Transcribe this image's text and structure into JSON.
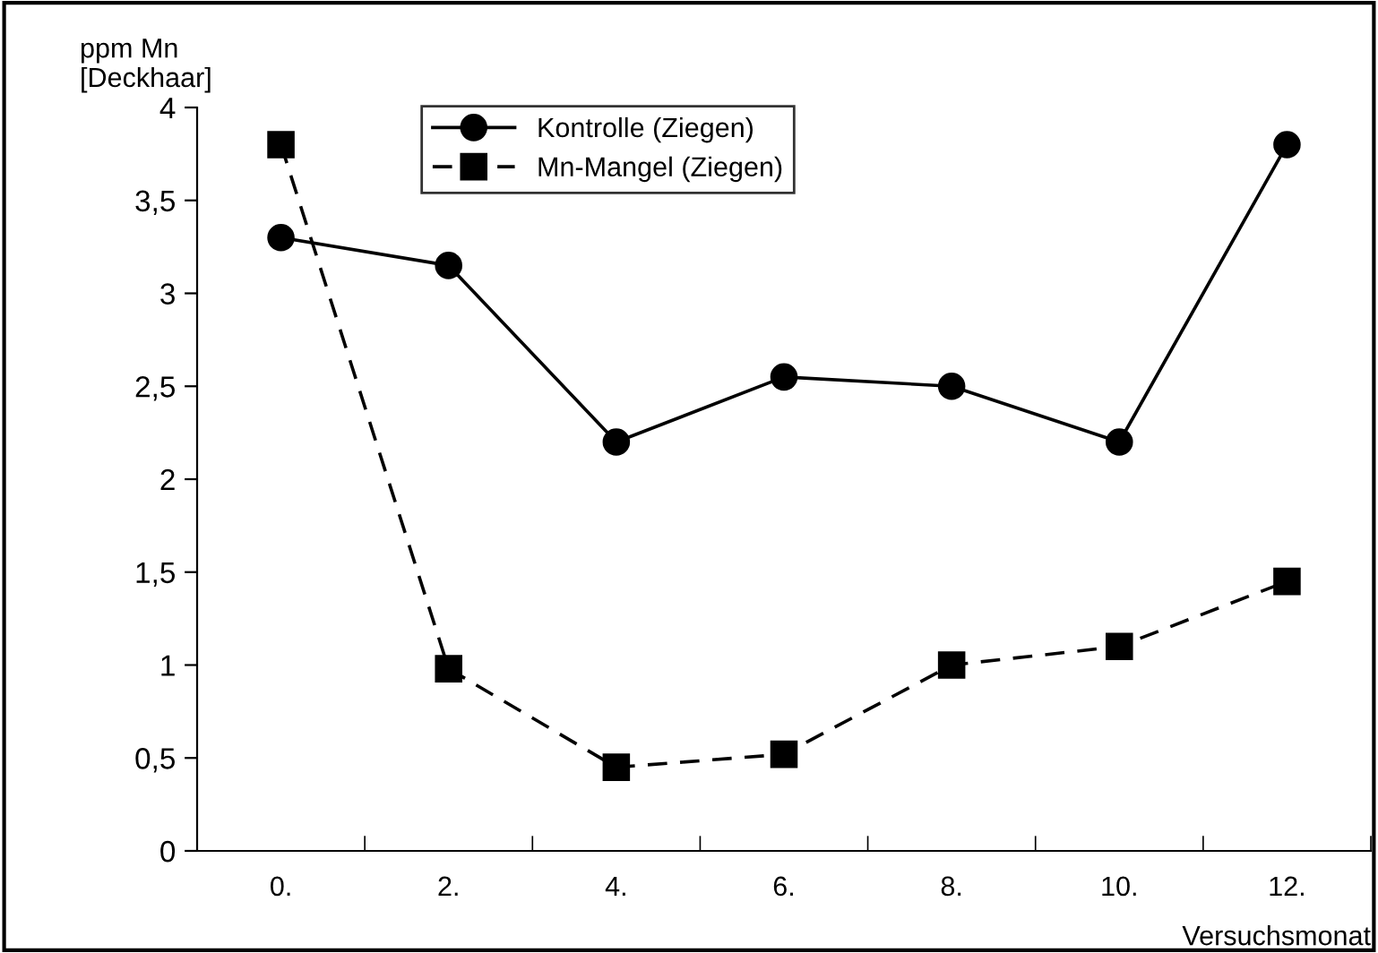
{
  "chart_data": {
    "type": "line",
    "ylabel": "ppm Mn\n[Deckhaar]",
    "xlabel": "Versuchsmonat",
    "categories": [
      "0.",
      "2.",
      "4.",
      "6.",
      "8.",
      "10.",
      "12."
    ],
    "series": [
      {
        "name": "Kontrolle (Ziegen)",
        "color": "#000000",
        "marker": "circle",
        "line_style": "solid",
        "values": [
          3.3,
          3.15,
          2.2,
          2.55,
          2.5,
          2.2,
          3.8
        ]
      },
      {
        "name": "Mn-Mangel (Ziegen)",
        "color": "#000000",
        "marker": "square",
        "line_style": "dashed",
        "values": [
          3.8,
          0.98,
          0.45,
          0.52,
          1.0,
          1.1,
          1.45
        ]
      }
    ],
    "ylim": [
      0,
      4
    ],
    "yticks": [
      0,
      {
        "value": 0.5,
        "label": "0,5"
      },
      1,
      {
        "value": 1.5,
        "label": "1,5"
      },
      2,
      {
        "value": 2.5,
        "label": "2,5"
      },
      3,
      {
        "value": 3.5,
        "label": "3,5"
      },
      4
    ],
    "grid": false,
    "legend": "top"
  }
}
